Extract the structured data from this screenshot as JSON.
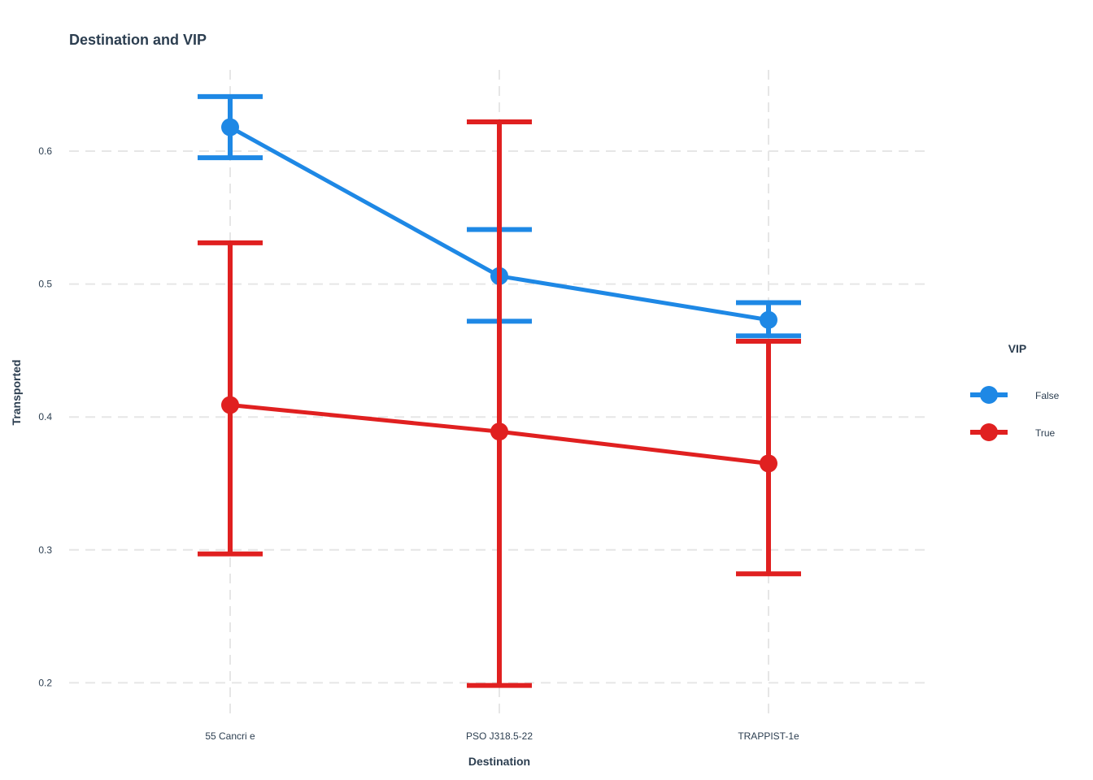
{
  "chart_data": {
    "type": "line",
    "title": "Destination and VIP",
    "xlabel": "Destination",
    "ylabel": "Transported",
    "categories": [
      "55 Cancri e",
      "PSO J318.5-22",
      "TRAPPIST-1e"
    ],
    "ylim": [
      0.18,
      0.665
    ],
    "yticks": [
      0.2,
      0.3,
      0.4,
      0.5,
      0.6
    ],
    "ytick_labels": [
      "0.2",
      "0.3",
      "0.4",
      "0.5",
      "0.6"
    ],
    "grid": true,
    "legend": {
      "title": "VIP",
      "position": "right"
    },
    "series": [
      {
        "name": "False",
        "color": "#1e88e5",
        "values": [
          0.618,
          0.506,
          0.473
        ],
        "lower": [
          0.595,
          0.472,
          0.461
        ],
        "upper": [
          0.641,
          0.541,
          0.486
        ]
      },
      {
        "name": "True",
        "color": "#e02020",
        "values": [
          0.409,
          0.389,
          0.365
        ],
        "lower": [
          0.297,
          0.198,
          0.282
        ],
        "upper": [
          0.531,
          0.622,
          0.457
        ]
      }
    ]
  }
}
